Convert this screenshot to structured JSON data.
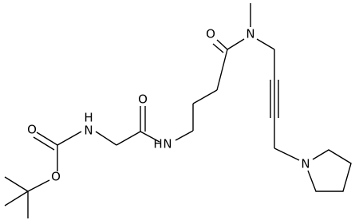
{
  "atoms": [
    {
      "label": "O"
    },
    {
      "label": "O"
    },
    {
      "label": "H"
    },
    {
      "label": "N"
    },
    {
      "label": "O"
    },
    {
      "label": "N"
    },
    {
      "label": "H"
    },
    {
      "label": "O"
    },
    {
      "label": "N"
    },
    {
      "label": "N"
    }
  ]
}
